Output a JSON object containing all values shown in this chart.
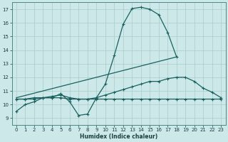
{
  "xlabel": "Humidex (Indice chaleur)",
  "background_color": "#cce8e8",
  "grid_color": "#aacccc",
  "line_color": "#1a6060",
  "xlim": [
    -0.5,
    23.5
  ],
  "ylim": [
    8.5,
    17.5
  ],
  "xticks": [
    0,
    1,
    2,
    3,
    4,
    5,
    6,
    7,
    8,
    9,
    10,
    11,
    12,
    13,
    14,
    15,
    16,
    17,
    18,
    19,
    20,
    21,
    22,
    23
  ],
  "yticks": [
    9,
    10,
    11,
    12,
    13,
    14,
    15,
    16,
    17
  ],
  "curve1_x": [
    0,
    1,
    2,
    3,
    4,
    5,
    6,
    7,
    8,
    9,
    10,
    11,
    12,
    13,
    14,
    15,
    16,
    17,
    18
  ],
  "curve1_y": [
    9.5,
    10.0,
    10.2,
    10.5,
    10.5,
    10.8,
    10.2,
    9.2,
    9.3,
    10.5,
    11.5,
    13.6,
    15.9,
    17.05,
    17.15,
    17.0,
    16.6,
    15.3,
    13.5
  ],
  "curve2_x": [
    0,
    1,
    2,
    3,
    4,
    5,
    6,
    7,
    8,
    9,
    10,
    11,
    12,
    13,
    14,
    15,
    16,
    17,
    18,
    19,
    20,
    21,
    22,
    23
  ],
  "curve2_y": [
    10.4,
    10.4,
    10.4,
    10.5,
    10.5,
    10.5,
    10.4,
    10.4,
    10.4,
    10.4,
    10.4,
    10.4,
    10.4,
    10.4,
    10.4,
    10.4,
    10.4,
    10.4,
    10.4,
    10.4,
    10.4,
    10.4,
    10.4,
    10.4
  ],
  "line3_x": [
    0,
    18
  ],
  "line3_y": [
    10.5,
    13.5
  ],
  "curve4_x": [
    0,
    1,
    2,
    3,
    4,
    5,
    6,
    7,
    8,
    9,
    10,
    11,
    12,
    13,
    14,
    15,
    16,
    17,
    18,
    19,
    20,
    21,
    22,
    23
  ],
  "curve4_y": [
    10.4,
    10.4,
    10.5,
    10.5,
    10.6,
    10.7,
    10.5,
    10.4,
    10.4,
    10.5,
    10.7,
    10.9,
    11.1,
    11.3,
    11.5,
    11.7,
    11.7,
    11.9,
    12.0,
    12.0,
    11.7,
    11.2,
    10.9,
    10.5
  ]
}
